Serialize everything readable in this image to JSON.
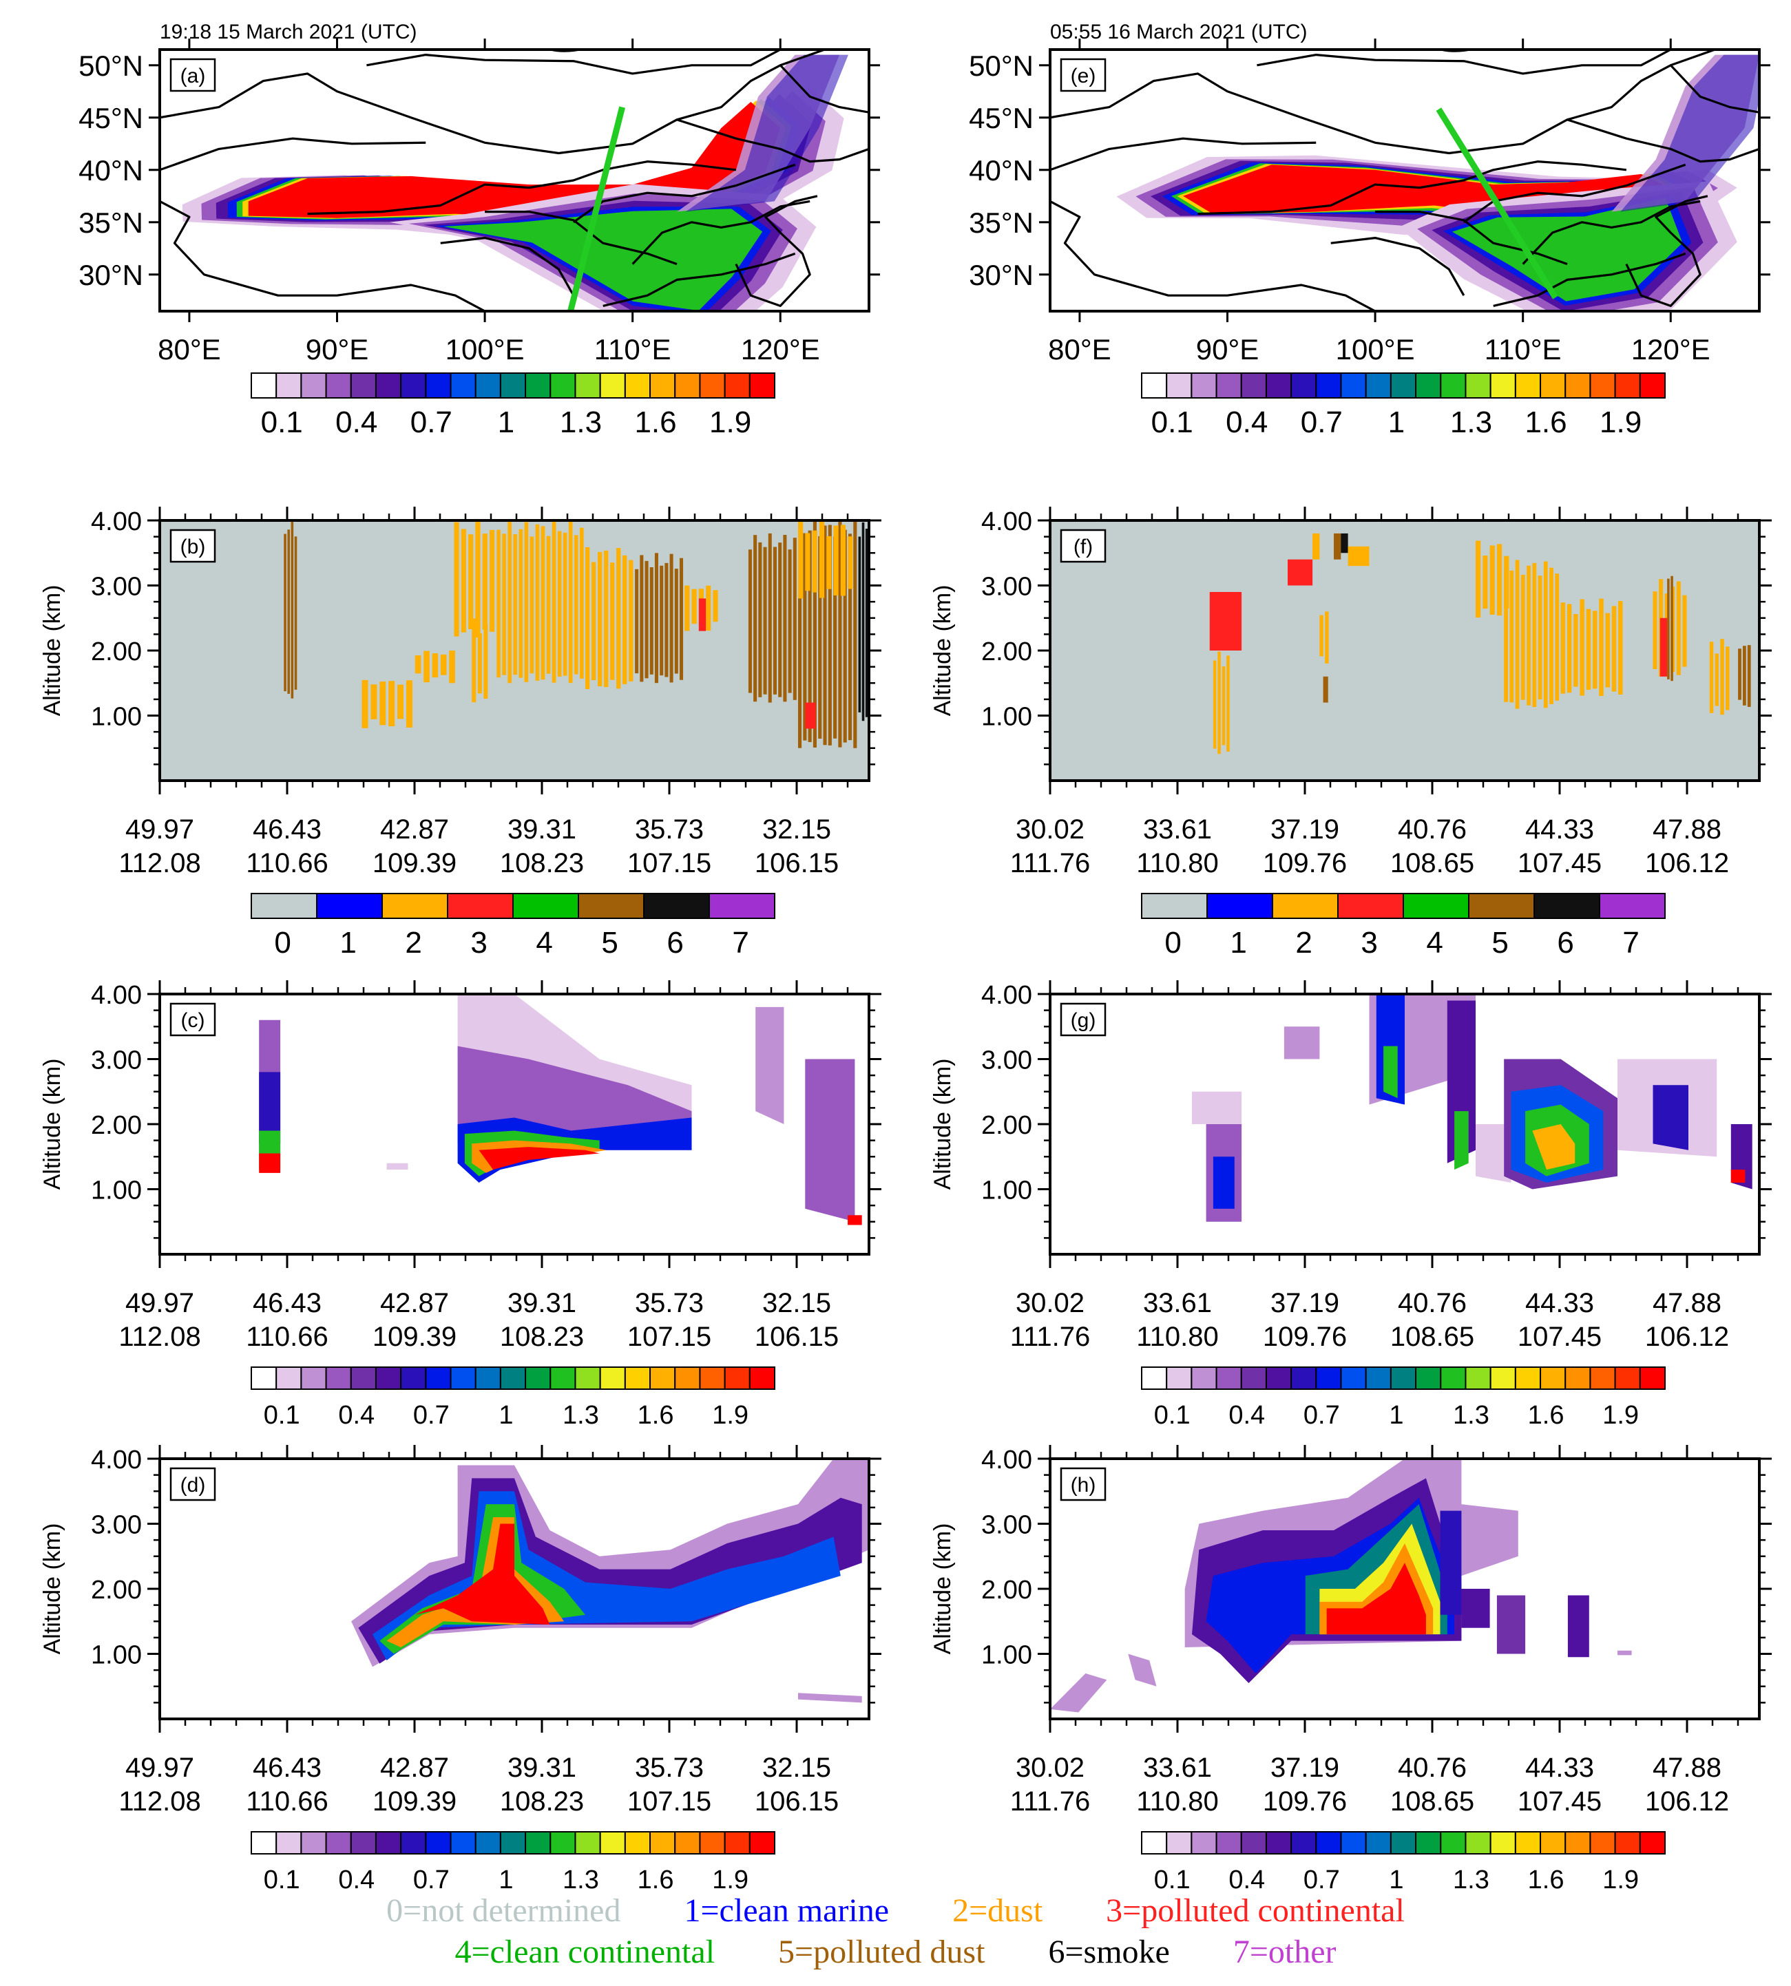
{
  "figure": {
    "timestamps": {
      "left": "19:18 15 March 2021 (UTC)",
      "right": "05:55 16 March 2021 (UTC)"
    },
    "colors": {
      "dust": "#ffb000",
      "polluted_dust": "#a0600a",
      "polluted_continental": "#ff2020",
      "smoke": "#111111",
      "not_determined": "#c3cfcf",
      "transect": "#22cc22",
      "intensity_ramp": [
        "#ffffff",
        "#e4c8ea",
        "#c090d4",
        "#9858c0",
        "#7030a8",
        "#5010a0",
        "#2a10b8",
        "#0018e8",
        "#0050f0",
        "#0070c0",
        "#008080",
        "#00a040",
        "#20c020",
        "#90e020",
        "#f0f020",
        "#ffd000",
        "#ffb000",
        "#ff9000",
        "#ff6000",
        "#ff3000",
        "#ff0000"
      ]
    },
    "legend_items": [
      {
        "label": "0=not determined",
        "color": "#b9c7c7"
      },
      {
        "label": "1=clean marine",
        "color": "#0000ff"
      },
      {
        "label": "2=dust",
        "color": "#ffa000"
      },
      {
        "label": "3=polluted continental",
        "color": "#ff2020"
      },
      {
        "label": "4=clean continental",
        "color": "#00c000"
      },
      {
        "label": "5=polluted dust",
        "color": "#a0600a"
      },
      {
        "label": "6=smoke",
        "color": "#000000"
      },
      {
        "label": "7=other",
        "color": "#c040d0"
      }
    ]
  },
  "chart_data": [
    {
      "id": "a",
      "type": "heatmap",
      "title": "(a)",
      "subtitle": "19:18 15 March 2021 (UTC)",
      "x_tick_labels": [
        "80°E",
        "90°E",
        "100°E",
        "110°E",
        "120°E"
      ],
      "y_tick_labels": [
        "50°N",
        "45°N",
        "40°N",
        "35°N",
        "30°N"
      ],
      "xlim": [
        78,
        126
      ],
      "ylim": [
        26.5,
        51.5
      ],
      "colorbar_labels": [
        "0.1",
        "0.4",
        "0.7",
        "1",
        "1.3",
        "1.6",
        "1.9"
      ],
      "transect": {
        "start": [
          109.3,
          46.0
        ],
        "end": [
          105.8,
          26.5
        ]
      }
    },
    {
      "id": "b",
      "type": "heatmap",
      "title": "(b)",
      "ylabel": "Altitude (km)",
      "y_tick_labels": [
        "4.00",
        "3.00",
        "2.00",
        "1.00"
      ],
      "x_tick_labels_lat": [
        "49.97",
        "46.43",
        "42.87",
        "39.31",
        "35.73",
        "32.15"
      ],
      "x_tick_labels_lon": [
        "112.08",
        "110.66",
        "109.39",
        "108.23",
        "107.15",
        "106.15"
      ],
      "colorbar_labels": [
        "0",
        "1",
        "2",
        "3",
        "4",
        "5",
        "6",
        "7"
      ]
    },
    {
      "id": "c",
      "type": "heatmap",
      "title": "(c)",
      "ylabel": "Altitude (km)",
      "y_tick_labels": [
        "4.00",
        "3.00",
        "2.00",
        "1.00"
      ],
      "x_tick_labels_lat": [
        "49.97",
        "46.43",
        "42.87",
        "39.31",
        "35.73",
        "32.15"
      ],
      "x_tick_labels_lon": [
        "112.08",
        "110.66",
        "109.39",
        "108.23",
        "107.15",
        "106.15"
      ],
      "colorbar_labels": [
        "0.1",
        "0.4",
        "0.7",
        "1",
        "1.3",
        "1.6",
        "1.9"
      ]
    },
    {
      "id": "d",
      "type": "heatmap",
      "title": "(d)",
      "ylabel": "Altitude (km)",
      "y_tick_labels": [
        "4.00",
        "3.00",
        "2.00",
        "1.00"
      ],
      "x_tick_labels_lat": [
        "49.97",
        "46.43",
        "42.87",
        "39.31",
        "35.73",
        "32.15"
      ],
      "x_tick_labels_lon": [
        "112.08",
        "110.66",
        "109.39",
        "108.23",
        "107.15",
        "106.15"
      ],
      "colorbar_labels": [
        "0.1",
        "0.4",
        "0.7",
        "1",
        "1.3",
        "1.6",
        "1.9"
      ]
    },
    {
      "id": "e",
      "type": "heatmap",
      "title": "(e)",
      "subtitle": "05:55 16 March 2021 (UTC)",
      "x_tick_labels": [
        "80°E",
        "90°E",
        "100°E",
        "110°E",
        "120°E"
      ],
      "y_tick_labels": [
        "50°N",
        "45°N",
        "40°N",
        "35°N",
        "30°N"
      ],
      "xlim": [
        78,
        126
      ],
      "ylim": [
        26.5,
        51.5
      ],
      "colorbar_labels": [
        "0.1",
        "0.4",
        "0.7",
        "1",
        "1.3",
        "1.6",
        "1.9"
      ],
      "transect": {
        "start": [
          104.3,
          45.8
        ],
        "end": [
          112.2,
          27.8
        ]
      }
    },
    {
      "id": "f",
      "type": "heatmap",
      "title": "(f)",
      "ylabel": "Altitude (km)",
      "y_tick_labels": [
        "4.00",
        "3.00",
        "2.00",
        "1.00"
      ],
      "x_tick_labels_lat": [
        "30.02",
        "33.61",
        "37.19",
        "40.76",
        "44.33",
        "47.88"
      ],
      "x_tick_labels_lon": [
        "111.76",
        "110.80",
        "109.76",
        "108.65",
        "107.45",
        "106.12"
      ],
      "colorbar_labels": [
        "0",
        "1",
        "2",
        "3",
        "4",
        "5",
        "6",
        "7"
      ]
    },
    {
      "id": "g",
      "type": "heatmap",
      "title": "(g)",
      "ylabel": "Altitude (km)",
      "y_tick_labels": [
        "4.00",
        "3.00",
        "2.00",
        "1.00"
      ],
      "x_tick_labels_lat": [
        "30.02",
        "33.61",
        "37.19",
        "40.76",
        "44.33",
        "47.88"
      ],
      "x_tick_labels_lon": [
        "111.76",
        "110.80",
        "109.76",
        "108.65",
        "107.45",
        "106.12"
      ],
      "colorbar_labels": [
        "0.1",
        "0.4",
        "0.7",
        "1",
        "1.3",
        "1.6",
        "1.9"
      ]
    },
    {
      "id": "h",
      "type": "heatmap",
      "title": "(h)",
      "ylabel": "Altitude (km)",
      "y_tick_labels": [
        "4.00",
        "3.00",
        "2.00",
        "1.00"
      ],
      "x_tick_labels_lat": [
        "30.02",
        "33.61",
        "37.19",
        "40.76",
        "44.33",
        "47.88"
      ],
      "x_tick_labels_lon": [
        "111.76",
        "110.80",
        "109.76",
        "108.65",
        "107.45",
        "106.12"
      ],
      "colorbar_labels": [
        "0.1",
        "0.4",
        "0.7",
        "1",
        "1.3",
        "1.6",
        "1.9"
      ]
    }
  ]
}
